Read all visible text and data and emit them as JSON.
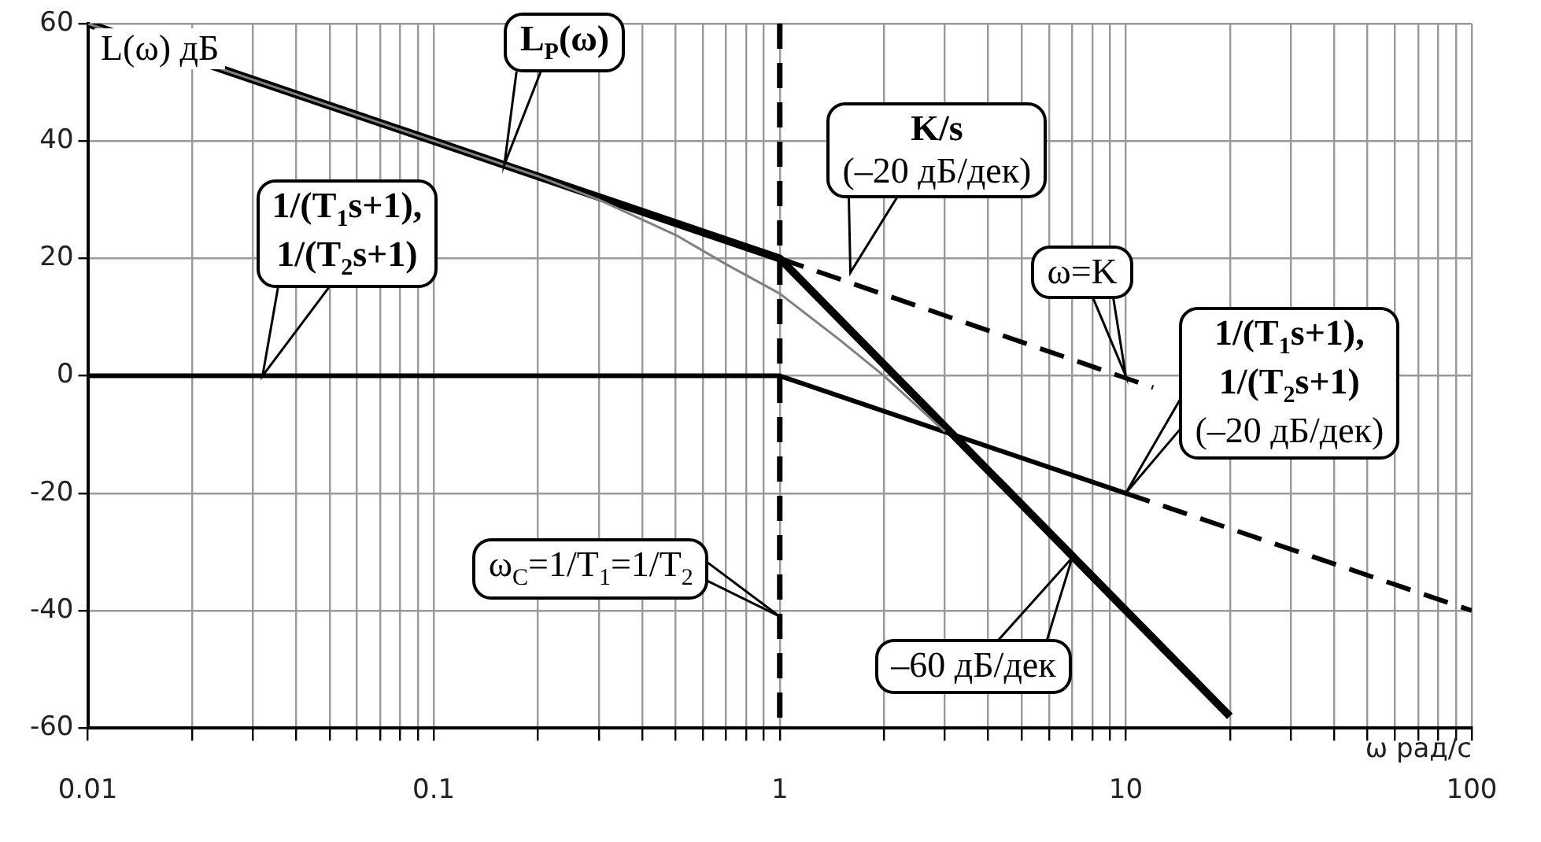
{
  "chart_data": {
    "type": "line",
    "xlabel": "ω рад/с",
    "ylabel": "L(ω) дБ",
    "log": "x",
    "grid": true,
    "legend": false,
    "marker": "none",
    "xlim": [
      0.01,
      100
    ],
    "ylim": [
      -60,
      60
    ],
    "xticks": [
      0.01,
      {
        "value": 0.02,
        "label": null
      },
      {
        "value": 0.03,
        "label": null
      },
      {
        "value": 0.04,
        "label": null
      },
      {
        "value": 0.05,
        "label": null
      },
      {
        "value": 0.06,
        "label": null
      },
      {
        "value": 0.07,
        "label": null
      },
      {
        "value": 0.08,
        "label": null
      },
      {
        "value": 0.09,
        "label": null
      },
      0.1,
      {
        "value": 0.2,
        "label": null
      },
      {
        "value": 0.3,
        "label": null
      },
      {
        "value": 0.4,
        "label": null
      },
      {
        "value": 0.5,
        "label": null
      },
      {
        "value": 0.6,
        "label": null
      },
      {
        "value": 0.7,
        "label": null
      },
      {
        "value": 0.8,
        "label": null
      },
      {
        "value": 0.9,
        "label": null
      },
      1,
      {
        "value": 2,
        "label": null
      },
      {
        "value": 3,
        "label": null
      },
      {
        "value": 4,
        "label": null
      },
      {
        "value": 5,
        "label": null
      },
      {
        "value": 6,
        "label": null
      },
      {
        "value": 7,
        "label": null
      },
      {
        "value": 8,
        "label": null
      },
      {
        "value": 9,
        "label": null
      },
      10,
      {
        "value": 20,
        "label": null
      },
      {
        "value": 30,
        "label": null
      },
      {
        "value": 40,
        "label": null
      },
      {
        "value": 50,
        "label": null
      },
      {
        "value": 60,
        "label": null
      },
      {
        "value": 70,
        "label": null
      },
      {
        "value": 80,
        "label": null
      },
      {
        "value": 90,
        "label": null
      },
      100
    ],
    "yticks": [
      -60,
      -40,
      -20,
      0,
      20,
      40,
      60
    ],
    "series": [
      {
        "type": "line",
        "color": "#808080",
        "line_style": "solid",
        "x": [
          0.01,
          0.05,
          0.1,
          0.2,
          0.3,
          0.5,
          0.7,
          1,
          1.5,
          2,
          3
        ],
        "values": [
          60,
          46,
          40,
          34,
          30,
          24,
          19,
          14,
          6,
          0,
          -9.5
        ]
      },
      {
        "type": "line",
        "color": "#000000",
        "line_style": "solid",
        "x": [
          0.01,
          1,
          20
        ],
        "values": [
          60,
          20,
          -58
        ]
      },
      {
        "type": "line",
        "color": "#000000",
        "line_style": "solid",
        "x": [
          0.01,
          1,
          10
        ],
        "values": [
          0,
          0,
          -20
        ]
      },
      {
        "type": "line",
        "color": "#000000",
        "line_style": "dashed",
        "x": [
          10,
          100
        ],
        "values": [
          -20,
          -40
        ]
      },
      {
        "type": "line",
        "color": "#000000",
        "line_style": "dashed",
        "x": [
          1,
          12
        ],
        "values": [
          20,
          -2
        ]
      }
    ],
    "ref_lines": [
      {
        "axis": "x",
        "value": 1,
        "color": "#000000",
        "line_style": "dashed"
      }
    ],
    "annotations": [
      {
        "text": "L$_{P}$(ω)",
        "x": 0.16,
        "y": 36
      },
      {
        "text": "1/(T$_{1}$s+1),\n1/(T$_{2}$s+1)",
        "x": 0.032,
        "y": 0
      },
      {
        "text": "K/s\n(–20 дБ/дек)",
        "x": 1.6,
        "y": 17.6
      },
      {
        "text": "ω=K",
        "x": 10,
        "y": 0
      },
      {
        "text": "1/(T$_{1}$s+1),\n1/(T$_{2}$s+1)\n(–20 дБ/дек)",
        "x": 10,
        "y": -20
      },
      {
        "text": "ω$_{С}$=1/T$_{1}$=1/T$_{2}$",
        "x": 1,
        "y": -41
      },
      {
        "text": "–60 дБ/дек",
        "x": 7,
        "y": -31
      }
    ]
  }
}
